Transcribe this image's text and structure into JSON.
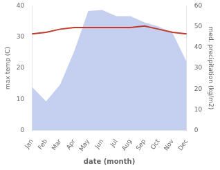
{
  "chart_data": {
    "type": "line",
    "xlabel": "date (month)",
    "ylabel": "max temp (C)",
    "y2label": "med. precipitation (kg/m2)",
    "categories": [
      "Jan",
      "Feb",
      "Mar",
      "Apr",
      "May",
      "Jun",
      "Jul",
      "Aug",
      "Sep",
      "Oct",
      "Nov",
      "Dec"
    ],
    "series": [
      {
        "type": "area",
        "axis": "y2",
        "color": "#c5d0f0",
        "values": [
          21.0,
          14.0,
          22.0,
          38.0,
          57.5,
          58.0,
          55.0,
          55.0,
          52.0,
          50.0,
          47.0,
          33.0
        ]
      },
      {
        "type": "line",
        "axis": "y",
        "color": "#c0392b",
        "values": [
          31.0,
          31.5,
          32.5,
          33.0,
          33.0,
          33.0,
          33.0,
          33.0,
          33.5,
          32.5,
          31.5,
          31.0
        ]
      }
    ],
    "ylim": [
      0,
      40
    ],
    "yticks": [
      0,
      10,
      20,
      30,
      40
    ],
    "y2lim": [
      0,
      60
    ],
    "y2ticks": [
      0,
      10,
      20,
      30,
      40,
      50,
      60
    ],
    "grid": false
  }
}
